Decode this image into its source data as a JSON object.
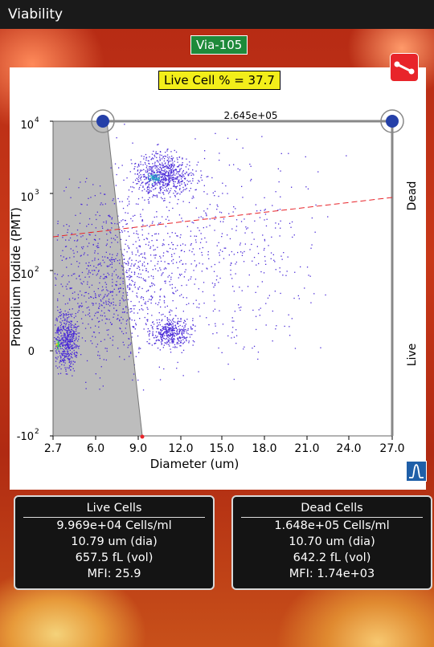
{
  "window": {
    "title": "Viability"
  },
  "sample_badge": "Via-105",
  "live_cell_label": "Live Cell % = 37.7",
  "plot": {
    "gate_value_label": "2.645e+05",
    "xlabel": "Diameter (um)",
    "ylabel": "Propidium Iodide (PMT)",
    "xticks": [
      "2.7",
      "6.0",
      "9.0",
      "12.0",
      "15.0",
      "18.0",
      "21.0",
      "24.0",
      "27.0"
    ],
    "yticks": [
      {
        "base": "10",
        "exp": "4"
      },
      {
        "base": "10",
        "exp": "3"
      },
      {
        "base": "10",
        "exp": "2"
      },
      {
        "base": "0",
        "exp": ""
      },
      {
        "base": "-10",
        "exp": "2"
      }
    ],
    "region_dead": "Dead",
    "region_live": "Live"
  },
  "live_cells": {
    "header": "Live Cells",
    "concentration": "9.969e+04 Cells/ml",
    "diameter": "10.79 um (dia)",
    "volume": "657.5 fL (vol)",
    "mfi": "MFI:  25.9"
  },
  "dead_cells": {
    "header": "Dead Cells",
    "concentration": "1.648e+05 Cells/ml",
    "diameter": "10.70 um (dia)",
    "volume": "642.2 fL (vol)",
    "mfi": "MFI: 1.74e+03"
  },
  "colors": {
    "titlebar": "#1a1a1a",
    "badge": "#1e8a3a",
    "live_cell_highlight": "#f2ee1a",
    "gate_button": "#e8242a",
    "histogram_button": "#1f5fa8",
    "scatter_points": "#4a2ad8",
    "threshold_line": "#e8242a"
  },
  "icons": {
    "gate_button": "gate-line-icon",
    "histogram_button": "histogram-curve-icon"
  }
}
